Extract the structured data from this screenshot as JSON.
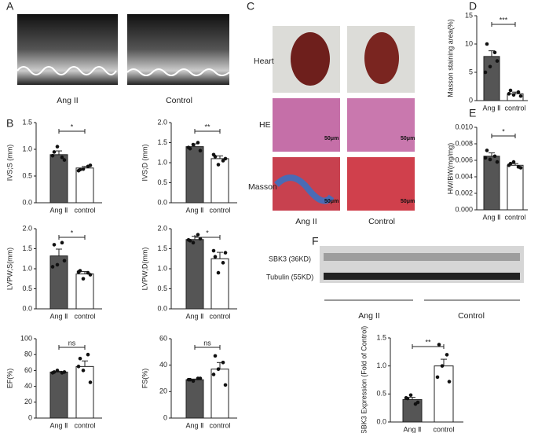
{
  "labels": {
    "panel_a": "A",
    "panel_b": "B",
    "panel_c": "C",
    "panel_d": "D",
    "panel_e": "E",
    "panel_f": "F",
    "a_left": "Ang II",
    "a_right": "Control",
    "c_row1": "Heart",
    "c_row2": "HE",
    "c_row3": "Masson",
    "c_left": "Ang II",
    "c_right": "Control",
    "scale": "50μm",
    "blot1": "SBK3 (36KD)",
    "blot2": "Tubulin  (55KD)",
    "f_left": "Ang II",
    "f_right": "Control"
  },
  "chart_data": [
    {
      "type": "bar",
      "ylabel": "IVS;S (mm)",
      "categories": [
        "Ang Ⅱ",
        "control"
      ],
      "values": [
        0.9,
        0.65
      ],
      "errors": [
        0.07,
        0.03
      ],
      "points": [
        [
          0.95,
          0.85,
          1.05,
          0.8,
          0.88
        ],
        [
          0.62,
          0.68,
          0.63,
          0.7,
          0.6
        ]
      ],
      "significance": "*",
      "colors": [
        "#555555",
        "#ffffff"
      ],
      "ylim": [
        0,
        1.5
      ],
      "yticks": [
        {
          "value": 0,
          "label": "0.0"
        },
        0.5,
        {
          "value": 1,
          "label": "1.0"
        },
        1.5
      ]
    },
    {
      "type": "bar",
      "ylabel": "IVS;D (mm)",
      "categories": [
        "Ang Ⅱ",
        "control"
      ],
      "values": [
        1.4,
        1.1
      ],
      "errors": [
        0.07,
        0.07
      ],
      "points": [
        [
          1.35,
          1.5,
          1.45,
          1.3,
          1.38
        ],
        [
          1.15,
          1.05,
          0.95,
          1.1,
          1.2
        ]
      ],
      "significance": "**",
      "colors": [
        "#555555",
        "#ffffff"
      ],
      "ylim": [
        0,
        2
      ],
      "yticks": [
        {
          "value": 0,
          "label": "0.0"
        },
        0.5,
        {
          "value": 1,
          "label": "1.0"
        },
        1.5,
        {
          "value": 2,
          "label": "2.0"
        }
      ]
    },
    {
      "type": "bar",
      "ylabel": "LVPW;S(mm)",
      "categories": [
        "Ang Ⅱ",
        "control"
      ],
      "values": [
        1.32,
        0.87
      ],
      "errors": [
        0.17,
        0.06
      ],
      "points": [
        [
          1.6,
          1.65,
          1.1,
          1.2,
          1.05
        ],
        [
          0.95,
          0.9,
          0.75,
          0.85,
          0.92
        ]
      ],
      "significance": "*",
      "colors": [
        "#555555",
        "#ffffff"
      ],
      "ylim": [
        0,
        2
      ],
      "yticks": [
        {
          "value": 0,
          "label": "0.0"
        },
        0.5,
        {
          "value": 1,
          "label": "1.0"
        },
        1.5,
        {
          "value": 2,
          "label": "2.0"
        }
      ]
    },
    {
      "type": "bar",
      "ylabel": "LVPW;D(mm)",
      "categories": [
        "Ang Ⅱ",
        "control"
      ],
      "values": [
        1.73,
        1.25
      ],
      "errors": [
        0.08,
        0.16
      ],
      "points": [
        [
          1.7,
          1.85,
          1.65,
          1.75,
          1.72
        ],
        [
          1.3,
          1.15,
          0.9,
          1.4,
          1.45
        ]
      ],
      "significance": "*",
      "colors": [
        "#555555",
        "#ffffff"
      ],
      "ylim": [
        0,
        2
      ],
      "yticks": [
        {
          "value": 0,
          "label": "0.0"
        },
        0.5,
        {
          "value": 1,
          "label": "1.0"
        },
        1.5,
        {
          "value": 2,
          "label": "2.0"
        }
      ]
    },
    {
      "type": "bar",
      "ylabel": "EF(%)",
      "categories": [
        "Ang Ⅱ",
        "control"
      ],
      "values": [
        58,
        65
      ],
      "errors": [
        1,
        7
      ],
      "points": [
        [
          58,
          57,
          60,
          58,
          57
        ],
        [
          75,
          80,
          60,
          45,
          65
        ]
      ],
      "significance": "ns",
      "colors": [
        "#555555",
        "#ffffff"
      ],
      "ylim": [
        0,
        100
      ],
      "yticks": [
        0,
        20,
        40,
        60,
        80,
        100
      ]
    },
    {
      "type": "bar",
      "ylabel": "FS(%)",
      "categories": [
        "Ang Ⅱ",
        "control"
      ],
      "values": [
        29,
        37
      ],
      "errors": [
        0.5,
        5
      ],
      "points": [
        [
          29,
          30,
          28,
          30,
          29
        ],
        [
          47,
          42,
          37,
          25,
          33
        ]
      ],
      "significance": "ns",
      "colors": [
        "#555555",
        "#ffffff"
      ],
      "ylim": [
        0,
        60
      ],
      "yticks": [
        0,
        20,
        40,
        60
      ]
    },
    {
      "type": "bar",
      "ylabel": "Masson staining area(%)",
      "categories": [
        "Ang Ⅱ",
        "control"
      ],
      "values": [
        7.8,
        1.2
      ],
      "errors": [
        1.0,
        0.3
      ],
      "points": [
        [
          10,
          8.5,
          6,
          7,
          5
        ],
        [
          1.8,
          1.5,
          1,
          0.8,
          1.2
        ]
      ],
      "significance": "***",
      "colors": [
        "#555555",
        "#ffffff"
      ],
      "ylim": [
        0,
        15
      ],
      "yticks": [
        0,
        5,
        10,
        15
      ]
    },
    {
      "type": "bar",
      "ylabel": "HW/BW(mg/mg)",
      "categories": [
        "Ang Ⅱ",
        "control"
      ],
      "values": [
        0.0065,
        0.0054
      ],
      "errors": [
        0.0004,
        0.0002
      ],
      "points": [
        [
          0.0072,
          0.0065,
          0.0061,
          0.0058,
          0.0063
        ],
        [
          0.0056,
          0.0052,
          0.0058,
          0.0051,
          0.0054
        ]
      ],
      "significance": "*",
      "colors": [
        "#555555",
        "#ffffff"
      ],
      "ylim": [
        0,
        0.01
      ],
      "yticks": [
        {
          "value": 0,
          "label": "0.000"
        },
        {
          "value": 0.002,
          "label": "0.002"
        },
        {
          "value": 0.004,
          "label": "0.004"
        },
        {
          "value": 0.006,
          "label": "0.006"
        },
        {
          "value": 0.008,
          "label": "0.008"
        },
        {
          "value": 0.01,
          "label": "0.010"
        }
      ]
    },
    {
      "type": "bar",
      "ylabel": "SBK3 Expression (Fold of Control)",
      "categories": [
        "Ang Ⅱ",
        "control"
      ],
      "values": [
        0.4,
        1.0
      ],
      "errors": [
        0.04,
        0.12
      ],
      "points": [
        [
          0.42,
          0.32,
          0.48,
          0.35,
          0.43
        ],
        [
          1.38,
          1.2,
          1.0,
          0.72,
          0.8
        ]
      ],
      "significance": "**",
      "colors": [
        "#555555",
        "#ffffff"
      ],
      "ylim": [
        0,
        1.5
      ],
      "yticks": [
        {
          "value": 0,
          "label": "0.0"
        },
        0.5,
        {
          "value": 1,
          "label": "1.0"
        },
        1.5
      ]
    }
  ]
}
